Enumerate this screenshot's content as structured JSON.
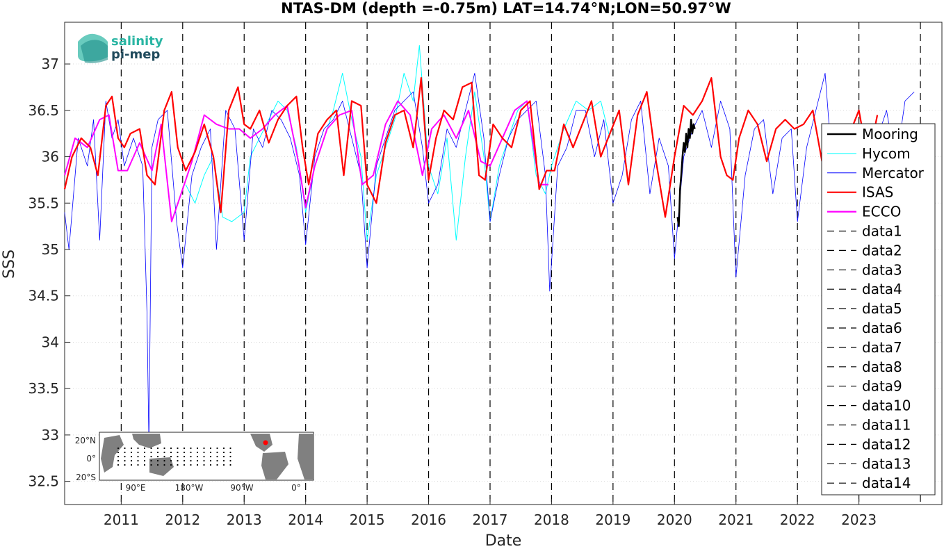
{
  "chart_data": {
    "type": "line",
    "title": "NTAS-DM (depth =-0.75m) LAT=14.74°N;LON=50.97°W",
    "xlabel": "Date",
    "ylabel": "SSS",
    "xlim": [
      2010.08,
      2024.35
    ],
    "ylim": [
      32.25,
      37.45
    ],
    "grid": true,
    "legend_placement": "right",
    "x_ticks": [
      2011,
      2012,
      2013,
      2014,
      2015,
      2016,
      2017,
      2018,
      2019,
      2020,
      2021,
      2022,
      2023
    ],
    "x_tick_labels": [
      "2011",
      "2012",
      "2013",
      "2014",
      "2015",
      "2016",
      "2017",
      "2018",
      "2019",
      "2020",
      "2021",
      "2022",
      "2023"
    ],
    "y_ticks": [
      32.5,
      33,
      33.5,
      34,
      34.5,
      35,
      35.5,
      36,
      36.5,
      37
    ],
    "y_tick_labels": [
      "32.5",
      "33",
      "33.5",
      "34",
      "34.5",
      "35",
      "35.5",
      "36",
      "36.5",
      "37"
    ],
    "vlines": [
      {
        "name": "data1",
        "x": 2011.0
      },
      {
        "name": "data2",
        "x": 2012.0
      },
      {
        "name": "data3",
        "x": 2013.0
      },
      {
        "name": "data4",
        "x": 2014.0
      },
      {
        "name": "data5",
        "x": 2015.0
      },
      {
        "name": "data6",
        "x": 2016.0
      },
      {
        "name": "data7",
        "x": 2017.0
      },
      {
        "name": "data8",
        "x": 2018.0
      },
      {
        "name": "data9",
        "x": 2019.0
      },
      {
        "name": "data10",
        "x": 2020.0
      },
      {
        "name": "data11",
        "x": 2021.0
      },
      {
        "name": "data12",
        "x": 2022.0
      },
      {
        "name": "data13",
        "x": 2023.0
      },
      {
        "name": "data14",
        "x": 2024.0
      }
    ],
    "series": [
      {
        "name": "Mooring",
        "color": "#000000",
        "x": [
          2020.05,
          2020.07,
          2020.09,
          2020.11,
          2020.13,
          2020.15,
          2020.17,
          2020.19,
          2020.21,
          2020.23,
          2020.25,
          2020.27,
          2020.29,
          2020.31,
          2020.33
        ],
        "y": [
          35.35,
          35.25,
          35.65,
          35.8,
          36.0,
          36.15,
          36.05,
          36.25,
          36.1,
          36.3,
          36.2,
          36.4,
          36.25,
          36.35,
          36.3
        ]
      },
      {
        "name": "Hycom",
        "color": "#00ffff",
        "x": [
          2012.05,
          2012.2,
          2012.35,
          2012.5,
          2012.65,
          2012.8,
          2013.0,
          2013.1,
          2013.25,
          2013.4,
          2013.55,
          2013.7,
          2013.85,
          2014.0,
          2014.15,
          2014.3,
          2014.45,
          2014.6,
          2014.75,
          2014.9,
          2015.0,
          2015.15,
          2015.3,
          2015.45,
          2015.6,
          2015.75,
          2015.85,
          2016.0,
          2016.15,
          2016.3,
          2016.45,
          2016.6,
          2016.75,
          2016.9,
          2017.0,
          2017.15,
          2017.3,
          2017.45,
          2017.6,
          2017.75,
          2017.9,
          2018.0,
          2018.2,
          2018.4,
          2018.6,
          2018.8,
          2018.95
        ],
        "y": [
          35.7,
          35.5,
          35.8,
          36.0,
          35.35,
          35.3,
          35.4,
          36.0,
          36.2,
          36.4,
          36.6,
          36.5,
          36.1,
          35.4,
          35.9,
          36.2,
          36.5,
          36.9,
          36.4,
          36.0,
          35.1,
          35.8,
          36.1,
          36.4,
          36.9,
          36.6,
          37.2,
          35.9,
          35.6,
          36.2,
          35.1,
          36.0,
          36.7,
          36.0,
          35.3,
          35.9,
          36.2,
          36.5,
          36.6,
          35.8,
          35.6,
          35.9,
          36.3,
          36.6,
          36.5,
          36.6,
          36.2
        ]
      },
      {
        "name": "Mercator",
        "color": "#0000ff",
        "x": [
          2010.08,
          2010.15,
          2010.3,
          2010.45,
          2010.55,
          2010.65,
          2010.75,
          2010.85,
          2010.95,
          2011.05,
          2011.2,
          2011.35,
          2011.42,
          2011.45,
          2011.5,
          2011.6,
          2011.75,
          2011.9,
          2012.0,
          2012.15,
          2012.3,
          2012.45,
          2012.55,
          2012.7,
          2012.85,
          2013.0,
          2013.15,
          2013.3,
          2013.45,
          2013.6,
          2013.75,
          2013.9,
          2014.0,
          2014.15,
          2014.3,
          2014.45,
          2014.6,
          2014.75,
          2014.9,
          2015.0,
          2015.15,
          2015.3,
          2015.45,
          2015.6,
          2015.75,
          2015.9,
          2016.0,
          2016.15,
          2016.3,
          2016.45,
          2016.6,
          2016.75,
          2016.9,
          2017.0,
          2017.15,
          2017.3,
          2017.45,
          2017.6,
          2017.75,
          2017.9,
          2017.97,
          2018.1,
          2018.25,
          2018.4,
          2018.55,
          2018.7,
          2018.85,
          2019.0,
          2019.15,
          2019.3,
          2019.45,
          2019.6,
          2019.75,
          2019.9,
          2020.0,
          2020.15,
          2020.3,
          2020.45,
          2020.6,
          2020.75,
          2020.9,
          2021.0,
          2021.15,
          2021.3,
          2021.45,
          2021.6,
          2021.75,
          2021.9,
          2022.0,
          2022.15,
          2022.3,
          2022.45,
          2022.6,
          2022.75,
          2022.9,
          2023.0,
          2023.15,
          2023.3,
          2023.45,
          2023.6,
          2023.75,
          2023.9
        ],
        "y": [
          35.4,
          35.0,
          36.2,
          35.9,
          36.4,
          35.1,
          36.6,
          36.2,
          36.4,
          35.9,
          36.2,
          35.9,
          34.3,
          32.9,
          36.1,
          36.4,
          36.5,
          35.3,
          34.8,
          35.8,
          36.1,
          36.3,
          35.0,
          36.5,
          36.3,
          35.1,
          36.3,
          36.1,
          36.5,
          36.4,
          36.2,
          35.8,
          35.05,
          36.0,
          36.3,
          36.4,
          36.6,
          36.2,
          35.8,
          34.8,
          35.9,
          36.2,
          36.5,
          36.6,
          36.7,
          36.1,
          35.5,
          35.7,
          36.3,
          36.1,
          36.5,
          36.9,
          36.2,
          35.3,
          35.8,
          36.2,
          36.4,
          36.5,
          36.6,
          35.8,
          34.55,
          35.9,
          36.1,
          36.5,
          36.5,
          36.0,
          36.4,
          35.5,
          35.8,
          36.4,
          36.6,
          35.6,
          36.2,
          35.9,
          34.9,
          36.0,
          36.3,
          36.5,
          36.1,
          36.6,
          36.3,
          34.7,
          35.8,
          36.3,
          36.4,
          35.6,
          36.2,
          36.3,
          35.3,
          36.1,
          36.5,
          36.9,
          35.6,
          36.2,
          36.3,
          35.6,
          35.8,
          36.2,
          36.5,
          35.9,
          36.6,
          36.7
        ]
      },
      {
        "name": "ISAS",
        "color": "#ff0000",
        "x": [
          2010.08,
          2010.2,
          2010.35,
          2010.5,
          2010.62,
          2010.75,
          2010.85,
          2010.95,
          2011.05,
          2011.15,
          2011.3,
          2011.42,
          2011.55,
          2011.7,
          2011.82,
          2011.92,
          2012.05,
          2012.2,
          2012.35,
          2012.5,
          2012.62,
          2012.75,
          2012.9,
          2013.0,
          2013.1,
          2013.25,
          2013.4,
          2013.55,
          2013.7,
          2013.85,
          2013.95,
          2014.05,
          2014.2,
          2014.35,
          2014.5,
          2014.62,
          2014.75,
          2014.9,
          2015.0,
          2015.15,
          2015.3,
          2015.45,
          2015.6,
          2015.75,
          2015.88,
          2016.0,
          2016.12,
          2016.25,
          2016.4,
          2016.55,
          2016.7,
          2016.82,
          2016.92,
          2017.05,
          2017.2,
          2017.35,
          2017.5,
          2017.65,
          2017.8,
          2017.92,
          2018.05,
          2018.2,
          2018.35,
          2018.5,
          2018.65,
          2018.8,
          2018.95,
          2019.1,
          2019.25,
          2019.4,
          2019.55,
          2019.7,
          2019.85,
          2020.0,
          2020.15,
          2020.3,
          2020.45,
          2020.6,
          2020.75,
          2020.85,
          2020.95,
          2021.05,
          2021.2,
          2021.35,
          2021.5,
          2021.65,
          2021.8,
          2021.95,
          2022.1,
          2022.25,
          2022.4,
          2022.55,
          2022.7,
          2022.85,
          2023.0,
          2023.15,
          2023.3
        ],
        "y": [
          35.65,
          36.0,
          36.2,
          36.1,
          35.8,
          36.55,
          36.65,
          36.2,
          36.1,
          36.25,
          36.3,
          35.8,
          35.7,
          36.5,
          36.7,
          36.1,
          35.85,
          36.05,
          36.35,
          36.0,
          35.4,
          36.5,
          36.75,
          36.35,
          36.3,
          36.5,
          36.15,
          36.4,
          36.55,
          36.65,
          36.1,
          35.7,
          36.25,
          36.4,
          36.5,
          35.8,
          36.6,
          36.55,
          35.7,
          35.5,
          36.15,
          36.45,
          36.5,
          36.1,
          36.85,
          35.75,
          36.2,
          36.5,
          36.4,
          36.75,
          36.8,
          35.8,
          35.75,
          36.35,
          36.2,
          36.1,
          36.5,
          36.6,
          35.65,
          35.85,
          35.85,
          36.35,
          36.1,
          36.35,
          36.6,
          36.0,
          36.25,
          36.5,
          35.7,
          36.45,
          36.7,
          35.95,
          35.35,
          36.0,
          36.55,
          36.45,
          36.6,
          36.85,
          36.0,
          35.8,
          35.75,
          36.2,
          36.5,
          36.35,
          35.95,
          36.3,
          36.4,
          36.3,
          36.35,
          36.5,
          35.95,
          36.25,
          35.95,
          36.25,
          36.5,
          35.95,
          36.45
        ]
      },
      {
        "name": "ECCO",
        "color": "#ff00ff",
        "x": [
          2010.08,
          2010.25,
          2010.45,
          2010.65,
          2010.8,
          2010.95,
          2011.1,
          2011.3,
          2011.5,
          2011.65,
          2011.82,
          2012.0,
          2012.15,
          2012.35,
          2012.55,
          2012.75,
          2012.92,
          2013.1,
          2013.3,
          2013.5,
          2013.7,
          2013.88,
          2014.0,
          2014.15,
          2014.35,
          2014.55,
          2014.75,
          2014.92,
          2015.1,
          2015.3,
          2015.5,
          2015.7,
          2015.9,
          2016.05,
          2016.25,
          2016.45,
          2016.65,
          2016.85,
          2017.0,
          2017.2,
          2017.4,
          2017.6,
          2017.8,
          2017.95
        ],
        "y": [
          35.8,
          36.2,
          36.1,
          36.4,
          36.45,
          35.85,
          35.85,
          36.15,
          35.85,
          36.35,
          35.3,
          35.65,
          35.95,
          36.45,
          36.35,
          36.3,
          36.3,
          36.2,
          36.3,
          36.45,
          36.55,
          35.95,
          35.45,
          35.9,
          36.3,
          36.45,
          36.5,
          35.7,
          35.8,
          36.35,
          36.6,
          36.45,
          35.8,
          36.3,
          36.45,
          36.2,
          36.5,
          35.95,
          35.9,
          36.2,
          36.5,
          36.6,
          35.7,
          35.7
        ]
      }
    ],
    "legend": [
      "Mooring",
      "Hycom",
      "Mercator",
      "ISAS",
      "ECCO",
      "data1",
      "data2",
      "data3",
      "data4",
      "data5",
      "data6",
      "data7",
      "data8",
      "data9",
      "data10",
      "data11",
      "data12",
      "data13",
      "data14"
    ]
  },
  "logo": {
    "line1": "salinity",
    "line2": "pi-mep",
    "color1": "#2ab5a3",
    "color2": "#1f4a5c"
  },
  "inset_map": {
    "lat_labels": [
      "20°N",
      "0°",
      "20°S"
    ],
    "lon_labels": [
      "90°E",
      "180°W",
      "90°W",
      "0°"
    ],
    "marker_color": "#ff0000",
    "land_color": "#808080"
  }
}
